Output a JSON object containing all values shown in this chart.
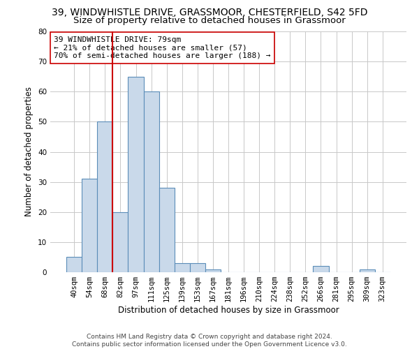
{
  "title_line1": "39, WINDWHISTLE DRIVE, GRASSMOOR, CHESTERFIELD, S42 5FD",
  "title_line2": "Size of property relative to detached houses in Grassmoor",
  "xlabel": "Distribution of detached houses by size in Grassmoor",
  "ylabel": "Number of detached properties",
  "bar_labels": [
    "40sqm",
    "54sqm",
    "68sqm",
    "82sqm",
    "97sqm",
    "111sqm",
    "125sqm",
    "139sqm",
    "153sqm",
    "167sqm",
    "181sqm",
    "196sqm",
    "210sqm",
    "224sqm",
    "238sqm",
    "252sqm",
    "266sqm",
    "281sqm",
    "295sqm",
    "309sqm",
    "323sqm"
  ],
  "bar_values": [
    5,
    31,
    50,
    20,
    65,
    60,
    28,
    3,
    3,
    1,
    0,
    0,
    0,
    0,
    0,
    0,
    2,
    0,
    0,
    1,
    0
  ],
  "bar_color": "#c9d9ea",
  "bar_edge_color": "#5b8db8",
  "grid_color": "#c8c8c8",
  "vline_color": "#cc0000",
  "annotation_text": "39 WINDWHISTLE DRIVE: 79sqm\n← 21% of detached houses are smaller (57)\n70% of semi-detached houses are larger (188) →",
  "annotation_box_color": "#ffffff",
  "annotation_box_edge": "#cc0000",
  "ylim": [
    0,
    80
  ],
  "yticks": [
    0,
    10,
    20,
    30,
    40,
    50,
    60,
    70,
    80
  ],
  "footnote": "Contains HM Land Registry data © Crown copyright and database right 2024.\nContains public sector information licensed under the Open Government Licence v3.0.",
  "bg_color": "#ffffff",
  "title_fontsize": 10,
  "subtitle_fontsize": 9.5,
  "axis_label_fontsize": 8.5,
  "tick_fontsize": 7.5,
  "annotation_fontsize": 8,
  "footnote_fontsize": 6.5
}
